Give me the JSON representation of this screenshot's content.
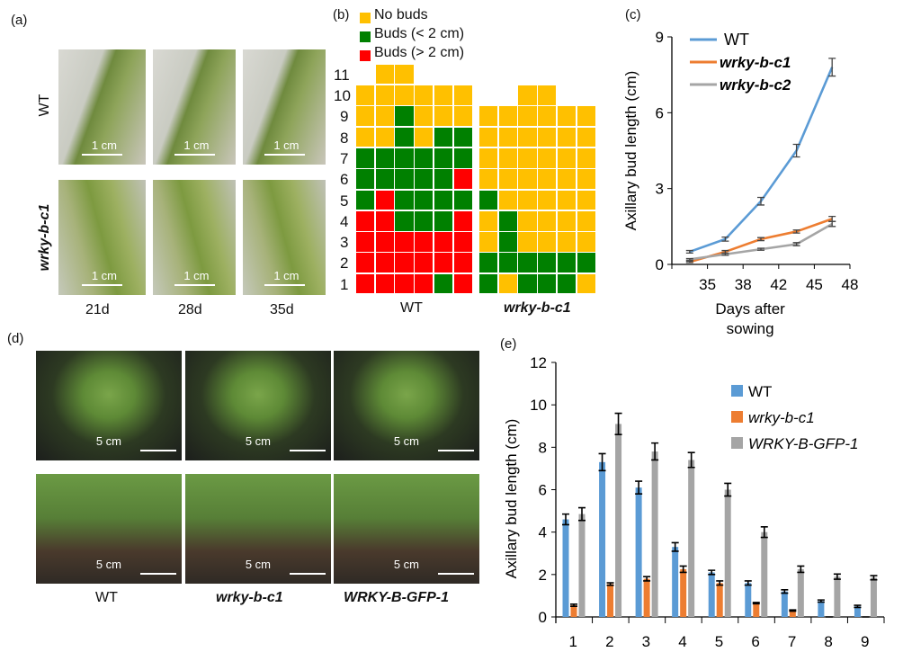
{
  "panels": {
    "a": "(a)",
    "b": "(b)",
    "c": "(c)",
    "d": "(d)",
    "e": "(e)"
  },
  "panel_a": {
    "rows": [
      "WT",
      "wrky-b-c1"
    ],
    "cols": [
      "21d",
      "28d",
      "35d"
    ],
    "scale": "1 cm"
  },
  "panel_d": {
    "cols": [
      "WT",
      "wrky-b-c1",
      "WRKY-B-GFP-1"
    ],
    "scale": "5 cm"
  },
  "panel_b": {
    "legend": [
      {
        "label": "No buds",
        "color": "#FFC000"
      },
      {
        "label": "Buds (< 2 cm)",
        "color": "#008000"
      },
      {
        "label": "Buds (> 2 cm)",
        "color": "#FF0000"
      }
    ],
    "row_labels": [
      "1",
      "2",
      "3",
      "4",
      "5",
      "6",
      "7",
      "8",
      "9",
      "10",
      "11"
    ],
    "groups": [
      {
        "label": "WT",
        "rows_bottom_up": [
          "RRRRGR",
          "RRRRRR",
          "RRRRRR",
          "RRGGGR",
          "GRGGGG",
          "GGGGGR",
          "GGGGGG",
          "YYGYGG",
          "YYGYYY",
          "YYYYYY",
          "-YY---"
        ]
      },
      {
        "label": "wrky-b-c1",
        "rows_bottom_up": [
          "GYGGGY",
          "GGGGGG",
          "YGYYYY",
          "YGYYYY",
          "GYYYYY",
          "YYYYYY",
          "YYYYYY",
          "YYYYYY",
          "YYYYYY",
          "--YY--"
        ]
      }
    ]
  },
  "chart_data": [
    {
      "type": "line",
      "xlabel": "Days after sowing",
      "ylabel": "Axillary bud length (cm)",
      "ylim": [
        0,
        9
      ],
      "yticks": [
        "0",
        "3",
        "6",
        "9"
      ],
      "xticks": [
        {
          "v": 32,
          "label": ""
        },
        {
          "v": 35,
          "label": "35"
        },
        {
          "v": 38,
          "label": "38"
        },
        {
          "v": 42,
          "label": "42"
        },
        {
          "v": 45,
          "label": "45"
        },
        {
          "v": 48,
          "label": "48"
        }
      ],
      "x": [
        33.5,
        36.5,
        40,
        43.5,
        46.5
      ],
      "series": [
        {
          "name": "WT",
          "color": "#5B9BD5",
          "values": [
            0.5,
            1.0,
            2.5,
            4.5,
            7.8
          ],
          "err": [
            0.05,
            0.08,
            0.15,
            0.25,
            0.35
          ]
        },
        {
          "name": "wrky-b-c1",
          "color": "#ED7D31",
          "values": [
            0.1,
            0.5,
            1.0,
            1.3,
            1.8
          ],
          "err": [
            0.03,
            0.05,
            0.06,
            0.06,
            0.1
          ]
        },
        {
          "name": "wrky-b-c2",
          "color": "#A5A5A5",
          "values": [
            0.2,
            0.4,
            0.6,
            0.8,
            1.6
          ],
          "err": [
            0.03,
            0.04,
            0.04,
            0.06,
            0.1
          ]
        }
      ]
    },
    {
      "type": "bar",
      "ylabel": "Axillary bud length (cm)",
      "ylim": [
        0,
        12
      ],
      "yticks": [
        "0",
        "2",
        "4",
        "6",
        "8",
        "10",
        "12"
      ],
      "categories": [
        "1",
        "2",
        "3",
        "4",
        "5",
        "6",
        "7",
        "8",
        "9"
      ],
      "series": [
        {
          "name": "WT",
          "color": "#5B9BD5",
          "values": [
            4.6,
            7.3,
            6.1,
            3.3,
            2.1,
            1.6,
            1.2,
            0.75,
            0.5
          ],
          "err": [
            0.25,
            0.4,
            0.3,
            0.2,
            0.1,
            0.1,
            0.08,
            0.05,
            0.05
          ]
        },
        {
          "name": "wrky-b-c1",
          "color": "#ED7D31",
          "values": [
            0.55,
            1.55,
            1.8,
            2.25,
            1.6,
            0.65,
            0.3,
            0,
            0
          ],
          "err": [
            0.05,
            0.06,
            0.1,
            0.15,
            0.1,
            0.03,
            0.03,
            0,
            0
          ]
        },
        {
          "name": "WRKY-B-GFP-1",
          "color": "#A5A5A5",
          "values": [
            4.85,
            9.1,
            7.8,
            7.4,
            6.0,
            4.0,
            2.25,
            1.9,
            1.85
          ],
          "err": [
            0.3,
            0.5,
            0.4,
            0.35,
            0.3,
            0.25,
            0.15,
            0.12,
            0.1
          ]
        }
      ]
    }
  ]
}
